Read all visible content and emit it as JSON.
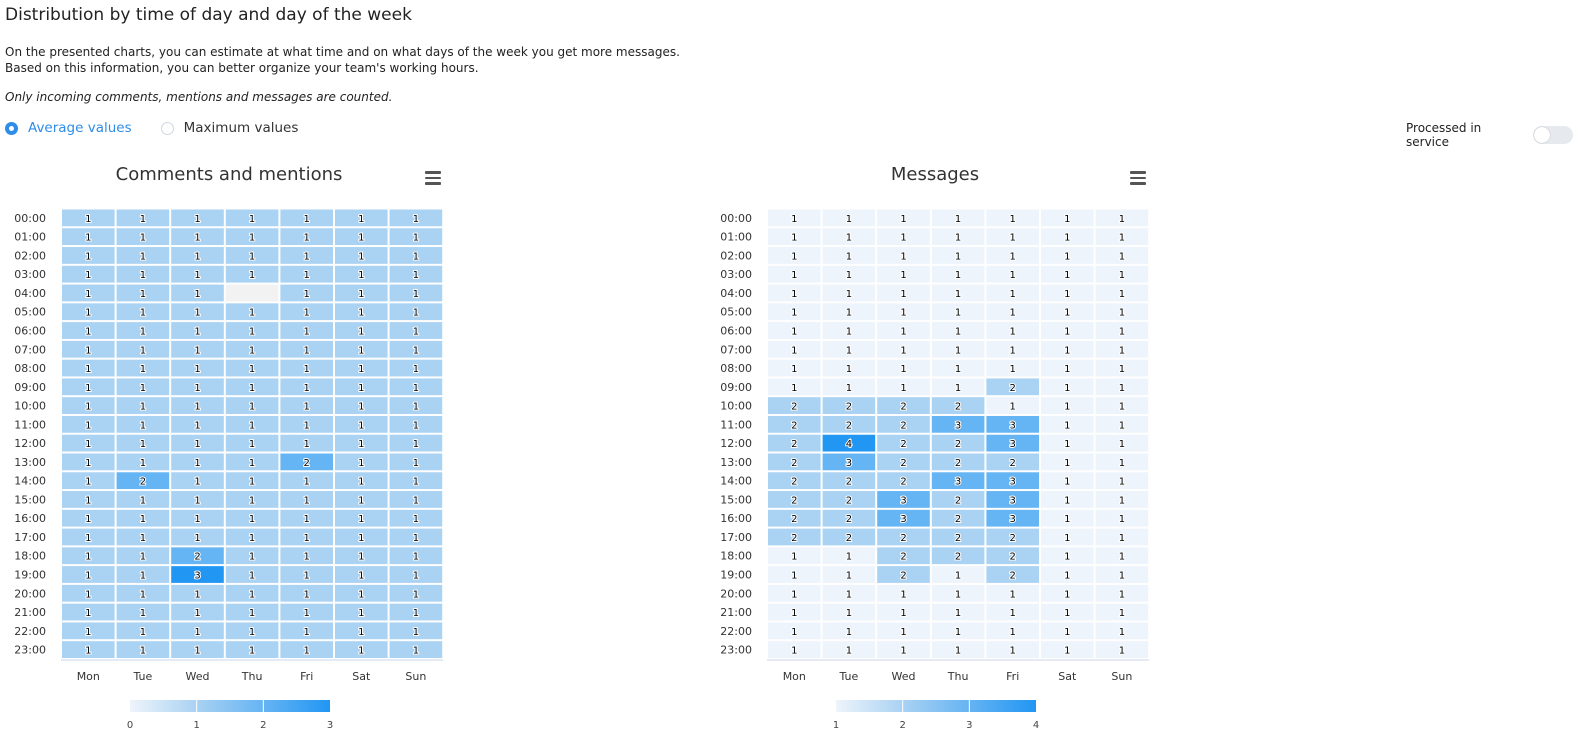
{
  "page": {
    "title": "Distribution by time of day and day of the week",
    "description_line1": "On the presented charts, you can estimate at what time and on what days of the week you get more messages.",
    "description_line2": "Based on this information, you can better organize your team's working hours.",
    "note": "Only incoming comments, mentions and messages are counted."
  },
  "mode": {
    "options": [
      "Average values",
      "Maximum values"
    ],
    "selected": "Average values"
  },
  "toggle": {
    "label": "Processed in service",
    "on": false
  },
  "colors": {
    "accent": "#2e8de8",
    "empty": "#f2f2f2",
    "scale_low": "#ffffff",
    "scale_high": "#2196f3"
  },
  "chart_data": [
    {
      "type": "heatmap",
      "title": "Comments and mentions",
      "menu_icon": "hamburger-menu-icon",
      "x": [
        "Mon",
        "Tue",
        "Wed",
        "Thu",
        "Fri",
        "Sat",
        "Sun"
      ],
      "y": [
        "00:00",
        "01:00",
        "02:00",
        "03:00",
        "04:00",
        "05:00",
        "06:00",
        "07:00",
        "08:00",
        "09:00",
        "10:00",
        "11:00",
        "12:00",
        "13:00",
        "14:00",
        "15:00",
        "16:00",
        "17:00",
        "18:00",
        "19:00",
        "20:00",
        "21:00",
        "22:00",
        "23:00"
      ],
      "values": [
        [
          1,
          1,
          1,
          1,
          1,
          1,
          1
        ],
        [
          1,
          1,
          1,
          1,
          1,
          1,
          1
        ],
        [
          1,
          1,
          1,
          1,
          1,
          1,
          1
        ],
        [
          1,
          1,
          1,
          1,
          1,
          1,
          1
        ],
        [
          1,
          1,
          1,
          null,
          1,
          1,
          1
        ],
        [
          1,
          1,
          1,
          1,
          1,
          1,
          1
        ],
        [
          1,
          1,
          1,
          1,
          1,
          1,
          1
        ],
        [
          1,
          1,
          1,
          1,
          1,
          1,
          1
        ],
        [
          1,
          1,
          1,
          1,
          1,
          1,
          1
        ],
        [
          1,
          1,
          1,
          1,
          1,
          1,
          1
        ],
        [
          1,
          1,
          1,
          1,
          1,
          1,
          1
        ],
        [
          1,
          1,
          1,
          1,
          1,
          1,
          1
        ],
        [
          1,
          1,
          1,
          1,
          1,
          1,
          1
        ],
        [
          1,
          1,
          1,
          1,
          2,
          1,
          1
        ],
        [
          1,
          2,
          1,
          1,
          1,
          1,
          1
        ],
        [
          1,
          1,
          1,
          1,
          1,
          1,
          1
        ],
        [
          1,
          1,
          1,
          1,
          1,
          1,
          1
        ],
        [
          1,
          1,
          1,
          1,
          1,
          1,
          1
        ],
        [
          1,
          1,
          2,
          1,
          1,
          1,
          1
        ],
        [
          1,
          1,
          3,
          1,
          1,
          1,
          1
        ],
        [
          1,
          1,
          1,
          1,
          1,
          1,
          1
        ],
        [
          1,
          1,
          1,
          1,
          1,
          1,
          1
        ],
        [
          1,
          1,
          1,
          1,
          1,
          1,
          1
        ],
        [
          1,
          1,
          1,
          1,
          1,
          1,
          1
        ]
      ],
      "color_axis": {
        "min": 0,
        "max": 3,
        "ticks": [
          "0",
          "1",
          "2",
          "3"
        ]
      }
    },
    {
      "type": "heatmap",
      "title": "Messages",
      "menu_icon": "hamburger-menu-icon",
      "x": [
        "Mon",
        "Tue",
        "Wed",
        "Thu",
        "Fri",
        "Sat",
        "Sun"
      ],
      "y": [
        "00:00",
        "01:00",
        "02:00",
        "03:00",
        "04:00",
        "05:00",
        "06:00",
        "07:00",
        "08:00",
        "09:00",
        "10:00",
        "11:00",
        "12:00",
        "13:00",
        "14:00",
        "15:00",
        "16:00",
        "17:00",
        "18:00",
        "19:00",
        "20:00",
        "21:00",
        "22:00",
        "23:00"
      ],
      "values": [
        [
          1,
          1,
          1,
          1,
          1,
          1,
          1
        ],
        [
          1,
          1,
          1,
          1,
          1,
          1,
          1
        ],
        [
          1,
          1,
          1,
          1,
          1,
          1,
          1
        ],
        [
          1,
          1,
          1,
          1,
          1,
          1,
          1
        ],
        [
          1,
          1,
          1,
          1,
          1,
          1,
          1
        ],
        [
          1,
          1,
          1,
          1,
          1,
          1,
          1
        ],
        [
          1,
          1,
          1,
          1,
          1,
          1,
          1
        ],
        [
          1,
          1,
          1,
          1,
          1,
          1,
          1
        ],
        [
          1,
          1,
          1,
          1,
          1,
          1,
          1
        ],
        [
          1,
          1,
          1,
          1,
          2,
          1,
          1
        ],
        [
          2,
          2,
          2,
          2,
          1,
          1,
          1
        ],
        [
          2,
          2,
          2,
          3,
          3,
          1,
          1
        ],
        [
          2,
          4,
          2,
          2,
          3,
          1,
          1
        ],
        [
          2,
          3,
          2,
          2,
          2,
          1,
          1
        ],
        [
          2,
          2,
          2,
          3,
          3,
          1,
          1
        ],
        [
          2,
          2,
          3,
          2,
          3,
          1,
          1
        ],
        [
          2,
          2,
          3,
          2,
          3,
          1,
          1
        ],
        [
          2,
          2,
          2,
          2,
          2,
          1,
          1
        ],
        [
          1,
          1,
          2,
          2,
          2,
          1,
          1
        ],
        [
          1,
          1,
          2,
          1,
          2,
          1,
          1
        ],
        [
          1,
          1,
          1,
          1,
          1,
          1,
          1
        ],
        [
          1,
          1,
          1,
          1,
          1,
          1,
          1
        ],
        [
          1,
          1,
          1,
          1,
          1,
          1,
          1
        ],
        [
          1,
          1,
          1,
          1,
          1,
          1,
          1
        ]
      ],
      "color_axis": {
        "min": 1,
        "max": 4,
        "ticks": [
          "1",
          "2",
          "3",
          "4"
        ]
      }
    }
  ]
}
